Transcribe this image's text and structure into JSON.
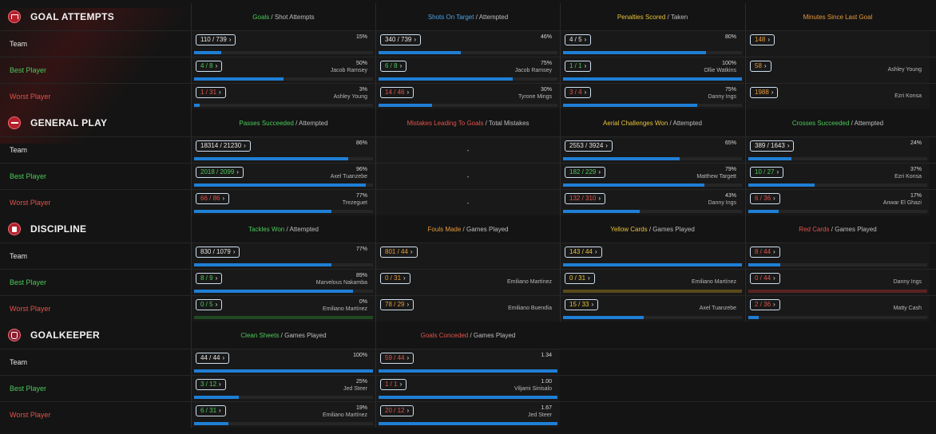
{
  "sections": [
    {
      "key": "goal_attempts",
      "title": "GOAL ATTEMPTS",
      "icon": "goal-icon",
      "columns": [
        {
          "highlight": "Goals",
          "highlight_color": "#4cc95a",
          "rest": " / Shot Attempts"
        },
        {
          "highlight": "Shots On Target",
          "highlight_color": "#4aa3e8",
          "rest": " / Attempted"
        },
        {
          "highlight": "Penalties Scored",
          "highlight_color": "#e7c23a",
          "rest": " / Taken"
        },
        {
          "highlight": "Minutes Since Last Goal",
          "highlight_color": "#e59a3a",
          "rest": ""
        }
      ],
      "rows": [
        {
          "label": "Team",
          "type": "team",
          "cells": [
            {
              "value": "110 / 739",
              "value_color": "#e6e6e6",
              "pct": "15%",
              "name": "",
              "fill": 0.15
            },
            {
              "value": "340 / 739",
              "value_color": "#e6e6e6",
              "pct": "46%",
              "name": "",
              "fill": 0.46
            },
            {
              "value": "4 / 5",
              "value_color": "#e6e6e6",
              "pct": "80%",
              "name": "",
              "fill": 0.8
            },
            {
              "value": "148",
              "value_color": "#e59a3a",
              "pct": "",
              "name": "",
              "fill": null
            }
          ]
        },
        {
          "label": "Best Player",
          "type": "best",
          "cells": [
            {
              "value": "4 / 8",
              "value_color": "#4cc95a",
              "pct": "50%",
              "name": "Jacob Ramsey",
              "fill": 0.5
            },
            {
              "value": "6 / 8",
              "value_color": "#4cc95a",
              "pct": "75%",
              "name": "Jacob Ramsey",
              "fill": 0.75
            },
            {
              "value": "1 / 1",
              "value_color": "#4cc95a",
              "pct": "100%",
              "name": "Ollie Watkins",
              "fill": 1.0
            },
            {
              "value": "58",
              "value_color": "#e59a3a",
              "pct": "",
              "name": "Ashley Young",
              "fill": null
            }
          ]
        },
        {
          "label": "Worst Player",
          "type": "worst",
          "cells": [
            {
              "value": "1 / 31",
              "value_color": "#e2534b",
              "pct": "3%",
              "name": "Ashley Young",
              "fill": 0.03
            },
            {
              "value": "14 / 46",
              "value_color": "#e2534b",
              "pct": "30%",
              "name": "Tyrone Mings",
              "fill": 0.3
            },
            {
              "value": "3 / 4",
              "value_color": "#e2534b",
              "pct": "75%",
              "name": "Danny Ings",
              "fill": 0.75
            },
            {
              "value": "1988",
              "value_color": "#e59a3a",
              "pct": "",
              "name": "Ezri Konsa",
              "fill": null
            }
          ]
        }
      ]
    },
    {
      "key": "general_play",
      "title": "GENERAL PLAY",
      "icon": "whistle-icon",
      "columns": [
        {
          "highlight": "Passes Succeeded",
          "highlight_color": "#4cc95a",
          "rest": " / Attempted"
        },
        {
          "highlight": "Mistakes Leading To Goals",
          "highlight_color": "#e2534b",
          "rest": " / Total Mistakes"
        },
        {
          "highlight": "Aerial Challenges Won",
          "highlight_color": "#e7c23a",
          "rest": " / Attempted"
        },
        {
          "highlight": "Crosses Succeeded",
          "highlight_color": "#4cc95a",
          "rest": " / Attempted"
        }
      ],
      "rows": [
        {
          "label": "Team",
          "type": "team",
          "cells": [
            {
              "value": "18314 / 21230",
              "value_color": "#e6e6e6",
              "pct": "86%",
              "name": "",
              "fill": 0.86
            },
            {
              "dash": "-"
            },
            {
              "value": "2553 / 3924",
              "value_color": "#e6e6e6",
              "pct": "65%",
              "name": "",
              "fill": 0.65
            },
            {
              "value": "389 / 1643",
              "value_color": "#e6e6e6",
              "pct": "24%",
              "name": "",
              "fill": 0.24
            }
          ]
        },
        {
          "label": "Best Player",
          "type": "best",
          "cells": [
            {
              "value": "2018 / 2099",
              "value_color": "#4cc95a",
              "pct": "96%",
              "name": "Axel Tuanzebe",
              "fill": 0.96
            },
            {
              "dash": "-"
            },
            {
              "value": "182 / 229",
              "value_color": "#4cc95a",
              "pct": "79%",
              "name": "Matthew Targett",
              "fill": 0.79
            },
            {
              "value": "10 / 27",
              "value_color": "#4cc95a",
              "pct": "37%",
              "name": "Ezri Konsa",
              "fill": 0.37
            }
          ]
        },
        {
          "label": "Worst Player",
          "type": "worst",
          "cells": [
            {
              "value": "66 / 86",
              "value_color": "#e2534b",
              "pct": "77%",
              "name": "Trezeguet",
              "fill": 0.77
            },
            {
              "dash": "-"
            },
            {
              "value": "132 / 310",
              "value_color": "#e2534b",
              "pct": "43%",
              "name": "Danny Ings",
              "fill": 0.43
            },
            {
              "value": "6 / 36",
              "value_color": "#e2534b",
              "pct": "17%",
              "name": "Anwar El Ghazi",
              "fill": 0.17
            }
          ]
        }
      ]
    },
    {
      "key": "discipline",
      "title": "DISCIPLINE",
      "icon": "card-icon",
      "columns": [
        {
          "highlight": "Tackles Won",
          "highlight_color": "#4cc95a",
          "rest": " / Attempted"
        },
        {
          "highlight": "Fouls Made",
          "highlight_color": "#e59a3a",
          "rest": " / Games Played"
        },
        {
          "highlight": "Yellow Cards",
          "highlight_color": "#e7c23a",
          "rest": " / Games Played"
        },
        {
          "highlight": "Red Cards",
          "highlight_color": "#e2534b",
          "rest": " / Games Played"
        }
      ],
      "rows": [
        {
          "label": "Team",
          "type": "team",
          "cells": [
            {
              "value": "830 / 1079",
              "value_color": "#e6e6e6",
              "pct": "77%",
              "name": "",
              "fill": 0.77
            },
            {
              "value": "801 / 44",
              "value_color": "#e59a3a",
              "pct": "",
              "name": "",
              "fill": null
            },
            {
              "value": "143 / 44",
              "value_color": "#e7c23a",
              "pct": "",
              "name": "",
              "fill": 1.0
            },
            {
              "value": "8 / 44",
              "value_color": "#e2534b",
              "pct": "",
              "name": "",
              "fill": 0.18
            }
          ]
        },
        {
          "label": "Best Player",
          "type": "best",
          "cells": [
            {
              "value": "8 / 9",
              "value_color": "#4cc95a",
              "pct": "89%",
              "name": "Marvelous Nakamba",
              "fill": 0.89
            },
            {
              "value": "0 / 31",
              "value_color": "#e59a3a",
              "pct": "",
              "name": "Emiliano Martínez",
              "fill": null
            },
            {
              "value": "0 / 31",
              "value_color": "#e7c23a",
              "pct": "",
              "name": "Emiliano Martínez",
              "fill": 0.0,
              "track_color": "#5a4a1a"
            },
            {
              "value": "0 / 44",
              "value_color": "#e2534b",
              "pct": "",
              "name": "Danny Ings",
              "fill": 0.0,
              "track_color": "#5a2222"
            }
          ]
        },
        {
          "label": "Worst Player",
          "type": "worst",
          "cells": [
            {
              "value": "0 / 5",
              "value_color": "#4cc95a",
              "pct": "0%",
              "name": "Emiliano Martínez",
              "fill": 0.0,
              "track_color": "#1f4a22"
            },
            {
              "value": "78 / 29",
              "value_color": "#e59a3a",
              "pct": "",
              "name": "Emiliano Buendía",
              "fill": null
            },
            {
              "value": "15 / 33",
              "value_color": "#e7c23a",
              "pct": "",
              "name": "Axel Tuanzebe",
              "fill": 0.45
            },
            {
              "value": "2 / 36",
              "value_color": "#e2534b",
              "pct": "",
              "name": "Matty Cash",
              "fill": 0.06
            }
          ]
        }
      ]
    },
    {
      "key": "goalkeeper",
      "title": "GOALKEEPER",
      "icon": "glove-icon",
      "columns": [
        {
          "highlight": "Clean Sheets",
          "highlight_color": "#4cc95a",
          "rest": " / Games Played"
        },
        {
          "highlight": "Goals Conceded",
          "highlight_color": "#e2534b",
          "rest": " / Games Played"
        }
      ],
      "rows": [
        {
          "label": "Team",
          "type": "team",
          "cells": [
            {
              "value": "44 / 44",
              "value_color": "#e6e6e6",
              "pct": "100%",
              "name": "",
              "fill": 1.0
            },
            {
              "value": "59 / 44",
              "value_color": "#e2534b",
              "pct": "1.34",
              "name": "",
              "fill": 1.0
            }
          ]
        },
        {
          "label": "Best Player",
          "type": "best",
          "cells": [
            {
              "value": "3 / 12",
              "value_color": "#4cc95a",
              "pct": "25%",
              "name": "Jed Steer",
              "fill": 0.25
            },
            {
              "value": "1 / 1",
              "value_color": "#e2534b",
              "pct": "1.00",
              "name": "Viljami Sinisalo",
              "fill": 1.0
            }
          ]
        },
        {
          "label": "Worst Player",
          "type": "worst",
          "cells": [
            {
              "value": "6 / 31",
              "value_color": "#4cc95a",
              "pct": "19%",
              "name": "Emiliano Martínez",
              "fill": 0.19
            },
            {
              "value": "20 / 12",
              "value_color": "#e2534b",
              "pct": "1.67",
              "name": "Jed Steer",
              "fill": 1.0
            }
          ]
        }
      ]
    }
  ],
  "colors": {
    "bar_fill": "#1f7fd6",
    "pill_border": "#cfe0f0"
  }
}
